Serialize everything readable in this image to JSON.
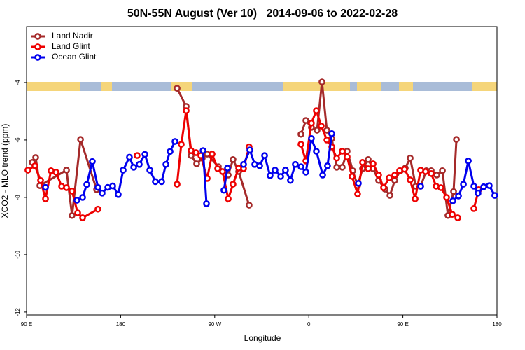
{
  "chart_data": {
    "type": "line",
    "title": "50N-55N August (Ver 10)   2014-09-06 to 2022-02-28",
    "xlabel": "Longitude",
    "ylabel": "XCO2 - MLO trend (ppm)",
    "xlim": [
      90,
      540
    ],
    "xticks": [
      {
        "value": 90,
        "label": "90 E"
      },
      180,
      {
        "value": 270,
        "label": "90 W"
      },
      {
        "value": 360,
        "label": "0"
      },
      {
        "value": 450,
        "label": "90 E"
      },
      {
        "value": 540,
        "label": "180"
      }
    ],
    "ylim": [
      -12.1,
      -2.05
    ],
    "yticks": [
      -4,
      -6,
      -8,
      -10,
      -12
    ],
    "legend": "upper left",
    "series": [
      {
        "name": "Land Nadir",
        "color": "#a52a2a",
        "x": [
          95.4,
          98.7,
          102.7,
          128.2,
          133.5,
          141.6,
          157.0,
          null,
          234.0,
          242.7,
          247.4,
          252.7,
          258.1,
          262.8,
          273.5,
          282.9,
          287.5,
          292.9,
          302.9,
          null,
          352.5,
          357.2,
          362.5,
          367.9,
          372.6,
          377.3,
          382.0,
          386.7,
          392.0,
          396.7,
          402.1,
          406.7,
          411.4,
          416.8,
          421.5,
          426.8,
          432.9,
          437.6,
          442.2,
          447.6,
          452.3,
          457.0,
          462.3,
          467.0,
          472.4,
          477.1,
          482.4,
          487.8,
          493.1,
          498.5,
          501.2
        ],
        "values": [
          -6.78,
          -6.61,
          -7.59,
          -7.05,
          -8.63,
          -5.98,
          -7.73,
          null,
          -4.2,
          -4.83,
          -6.54,
          -6.83,
          -6.63,
          -6.49,
          -6.93,
          -7.22,
          -6.68,
          -7.1,
          -8.27,
          null,
          -5.8,
          -5.32,
          -5.56,
          -5.66,
          -3.98,
          -5.66,
          -5.95,
          -6.95,
          -6.95,
          -6.39,
          -7.07,
          -7.59,
          -7.0,
          -6.68,
          -7.0,
          -7.41,
          -7.71,
          -7.93,
          -7.41,
          -7.07,
          -6.98,
          -6.63,
          -7.61,
          -7.61,
          -7.07,
          -7.07,
          -7.22,
          -7.07,
          -8.63,
          -7.8,
          -5.98
        ]
      },
      {
        "name": "Land Glint",
        "color": "#ee0000",
        "x": [
          91.3,
          98.0,
          103.4,
          108.1,
          113.4,
          118.1,
          123.5,
          128.2,
          133.5,
          138.9,
          143.6,
          158.3,
          null,
          195.8,
          null,
          234.0,
          238.0,
          242.7,
          247.4,
          252.1,
          256.7,
          262.8,
          267.5,
          272.8,
          277.5,
          282.9,
          287.5,
          292.9,
          297.6,
          302.9,
          null,
          352.5,
          357.2,
          362.5,
          367.2,
          371.9,
          377.3,
          382.0,
          386.7,
          392.0,
          396.7,
          401.4,
          406.7,
          411.4,
          416.8,
          421.5,
          426.8,
          431.5,
          436.9,
          442.2,
          446.9,
          451.6,
          457.0,
          461.7,
          467.0,
          471.7,
          477.1,
          481.8,
          486.4,
          491.8,
          497.2,
          502.5,
          null,
          517.9,
          522.6
        ],
        "values": [
          -7.05,
          -6.9,
          -7.41,
          -8.05,
          -7.07,
          -7.12,
          -7.61,
          -7.66,
          -7.78,
          -8.54,
          -8.71,
          -8.41,
          null,
          -6.54,
          null,
          -7.54,
          -6.15,
          -4.98,
          -6.37,
          -6.44,
          -6.54,
          -7.34,
          -6.49,
          -7.0,
          -7.1,
          -8.05,
          -7.54,
          -6.98,
          -7.0,
          -6.24,
          null,
          -6.15,
          -6.73,
          -5.41,
          -4.98,
          -5.51,
          -6.0,
          -6.24,
          -6.63,
          -6.39,
          -6.59,
          -7.27,
          -7.88,
          -6.78,
          -7.0,
          -6.83,
          -7.22,
          -7.66,
          -7.32,
          -7.22,
          -7.07,
          -7.02,
          -7.39,
          -8.05,
          -7.05,
          -7.1,
          -7.17,
          -7.61,
          -7.66,
          -8.0,
          -8.59,
          -8.71,
          null,
          -8.39,
          -7.73
        ]
      },
      {
        "name": "Ocean Glint",
        "color": "#0000ee",
        "x": [
          108.1,
          null,
          138.2,
          143.6,
          147.6,
          152.9,
          158.3,
          162.3,
          167.7,
          172.4,
          177.7,
          182.4,
          188.4,
          192.5,
          197.8,
          203.2,
          207.9,
          213.2,
          219.2,
          223.3,
          227.3,
          232.0,
          null,
          258.8,
          262.1,
          null,
          278.8,
          282.2,
          null,
          297.6,
          303.6,
          308.3,
          313.0,
          317.7,
          323.0,
          327.7,
          333.1,
          337.7,
          342.4,
          347.1,
          352.5,
          357.2,
          362.5,
          367.2,
          373.3,
          377.9,
          382.0,
          null,
          407.4,
          null,
          467.0,
          null,
          497.8,
          503.2,
          507.9,
          512.6,
          517.9,
          521.9,
          527.3,
          532.6,
          537.9
        ],
        "values": [
          -7.65,
          null,
          -8.1,
          -8.0,
          -7.55,
          -6.75,
          -7.65,
          -7.85,
          -7.65,
          -7.6,
          -7.9,
          -7.05,
          -6.6,
          -6.95,
          -6.85,
          -6.5,
          -7.05,
          -7.45,
          -7.45,
          -6.85,
          -6.4,
          -6.05,
          null,
          -6.37,
          -8.22,
          null,
          -7.75,
          -6.98,
          null,
          -6.85,
          -6.35,
          -6.85,
          -6.9,
          -6.54,
          -7.24,
          -7.05,
          -7.27,
          -7.05,
          -7.41,
          -6.85,
          -6.93,
          -7.12,
          -5.95,
          -6.39,
          -7.22,
          -6.9,
          -5.78,
          null,
          -7.51,
          null,
          -7.61,
          null,
          -8.12,
          -7.95,
          -7.54,
          -6.73,
          -7.61,
          -7.85,
          -7.63,
          -7.59,
          -7.93
        ]
      }
    ]
  }
}
